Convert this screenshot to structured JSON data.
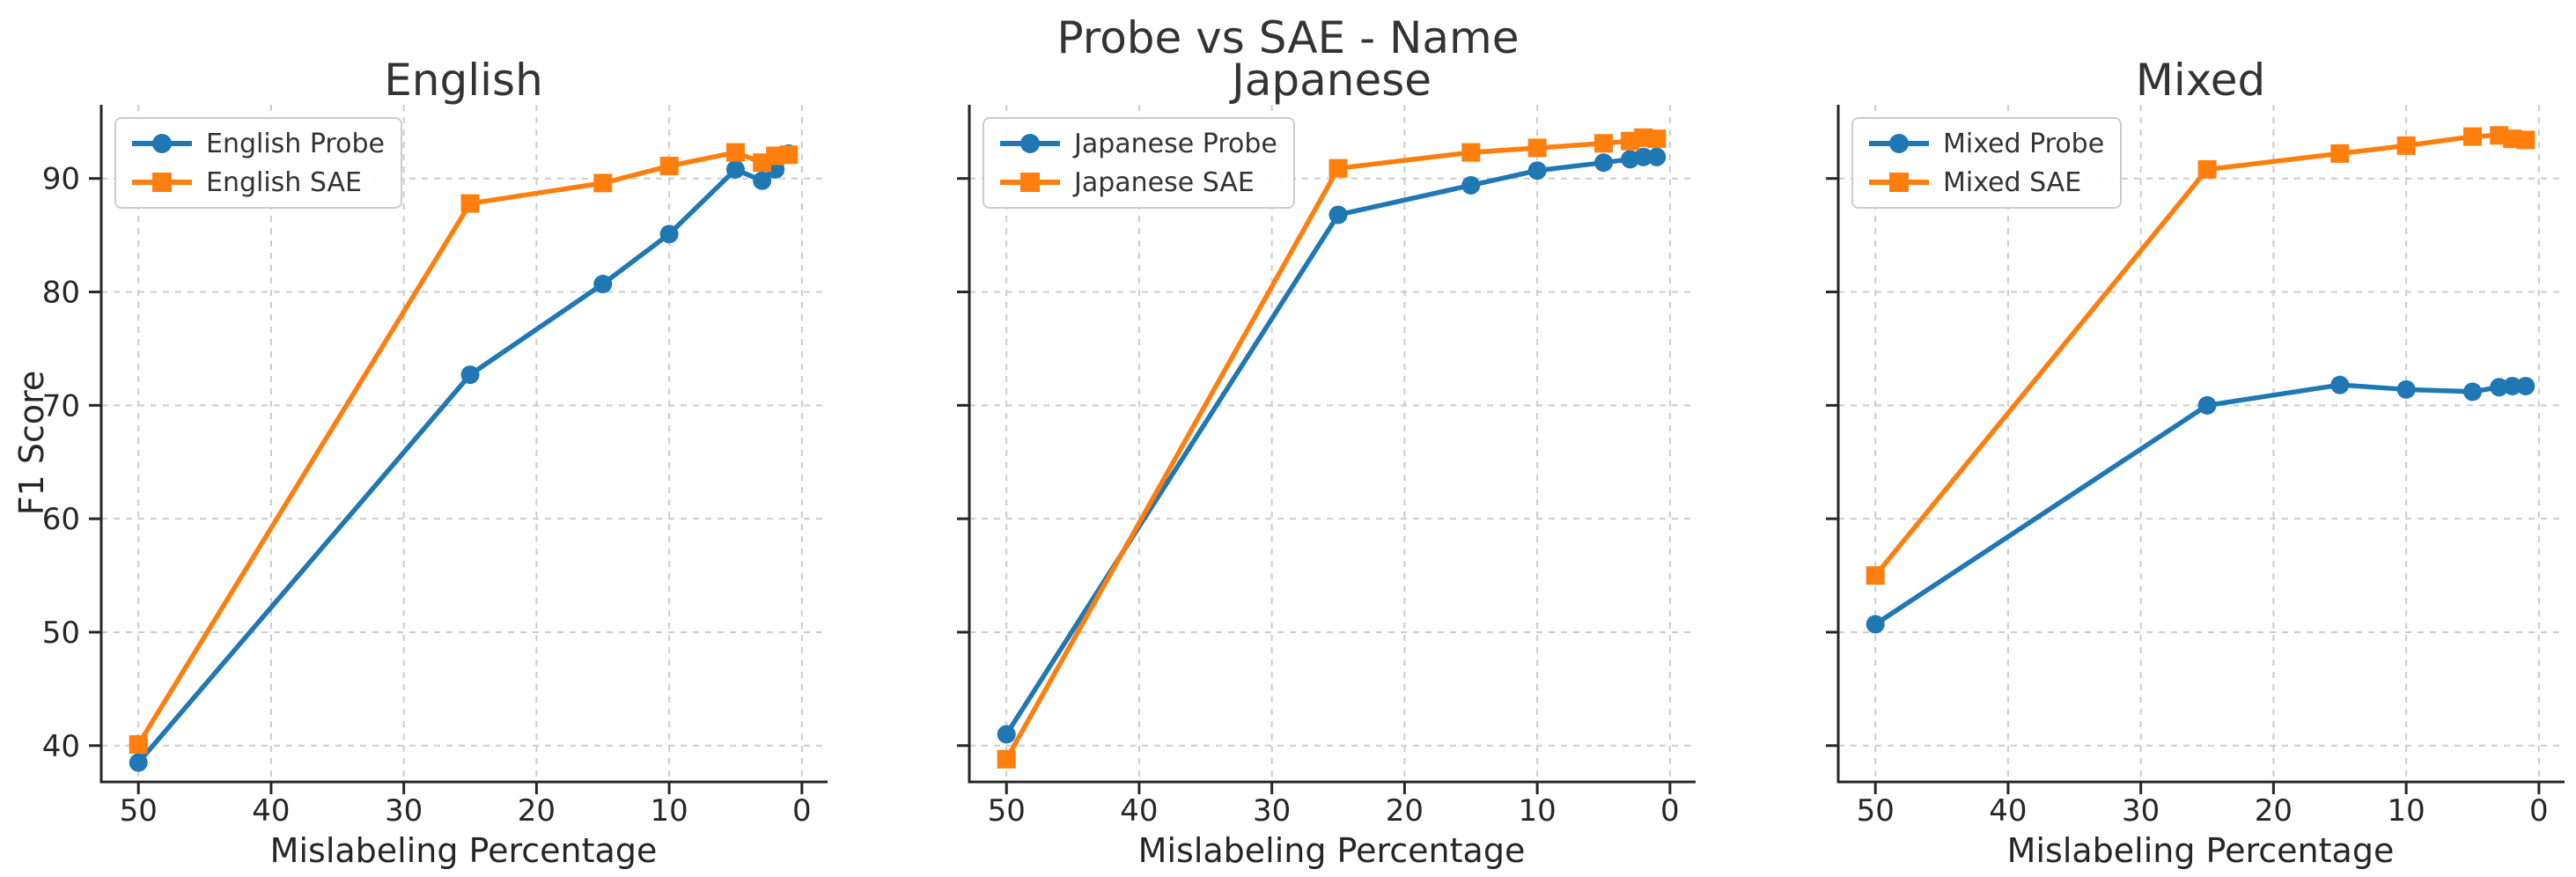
{
  "suptitle": "Probe vs SAE - Name",
  "colors": {
    "probe": "#1f77b4",
    "sae": "#ff7f0e",
    "grid": "#cccccc",
    "spine": "#262626",
    "text": "#262626",
    "title_text": "#333333"
  },
  "axes": {
    "xlabel": "Mislabeling Percentage",
    "ylabel": "F1 Score",
    "xticks": [
      50,
      40,
      30,
      20,
      10,
      0
    ],
    "yticks": [
      40,
      50,
      60,
      70,
      80,
      90
    ],
    "xlim": [
      52.8,
      -1.8
    ],
    "ylim": [
      36.8,
      96.5
    ],
    "x_axis_reversed": true,
    "grid": "dashed",
    "legend_position": "upper left"
  },
  "chart_data": [
    {
      "type": "line",
      "title": "English",
      "x": [
        50,
        25,
        15,
        10,
        5,
        3,
        2,
        1
      ],
      "series": [
        {
          "name": "English Probe",
          "marker": "circle",
          "color_key": "probe",
          "values": [
            38.5,
            72.7,
            80.7,
            85.1,
            90.8,
            89.8,
            90.8,
            92.2
          ]
        },
        {
          "name": "English SAE",
          "marker": "square",
          "color_key": "sae",
          "values": [
            40.1,
            87.8,
            89.6,
            91.1,
            92.3,
            91.4,
            92.0,
            92.1
          ]
        }
      ]
    },
    {
      "type": "line",
      "title": "Japanese",
      "x": [
        50,
        25,
        15,
        10,
        5,
        3,
        2,
        1
      ],
      "series": [
        {
          "name": "Japanese Probe",
          "marker": "circle",
          "color_key": "probe",
          "values": [
            41.0,
            86.8,
            89.4,
            90.7,
            91.4,
            91.7,
            91.9,
            91.9
          ]
        },
        {
          "name": "Japanese SAE",
          "marker": "square",
          "color_key": "sae",
          "values": [
            38.8,
            90.9,
            92.3,
            92.7,
            93.1,
            93.3,
            93.6,
            93.5
          ]
        }
      ]
    },
    {
      "type": "line",
      "title": "Mixed",
      "x": [
        50,
        25,
        15,
        10,
        5,
        3,
        2,
        1
      ],
      "series": [
        {
          "name": "Mixed Probe",
          "marker": "circle",
          "color_key": "probe",
          "values": [
            50.7,
            70.0,
            71.8,
            71.4,
            71.2,
            71.6,
            71.7,
            71.7
          ]
        },
        {
          "name": "Mixed SAE",
          "marker": "square",
          "color_key": "sae",
          "values": [
            55.0,
            90.8,
            92.2,
            92.9,
            93.7,
            93.8,
            93.5,
            93.4
          ]
        }
      ]
    }
  ]
}
